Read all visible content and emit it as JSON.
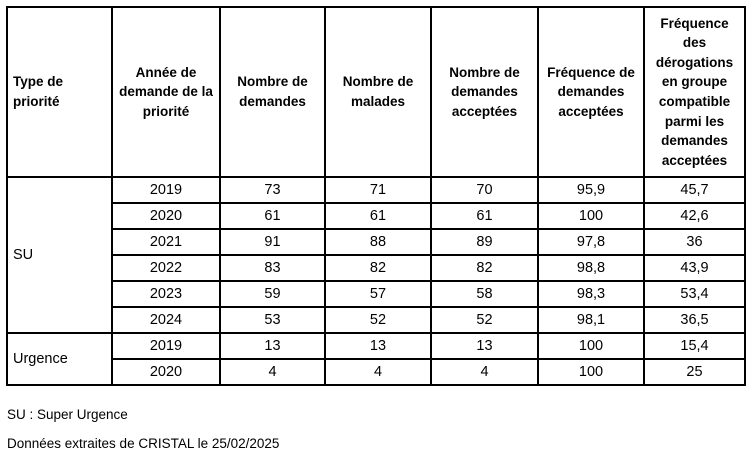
{
  "colors": {
    "background": "#ffffff",
    "border": "#000000",
    "text": "#000000"
  },
  "table": {
    "columns": [
      "Type de priorité",
      "Année de demande de la priorité",
      "Nombre de demandes",
      "Nombre de malades",
      "Nombre de demandes acceptées",
      "Fréquence de demandes acceptées",
      "Fréquence des dérogations en groupe compatible parmi les demandes acceptées"
    ],
    "groups": [
      {
        "type": "SU",
        "rows": [
          {
            "year": "2019",
            "values": [
              "73",
              "71",
              "70",
              "95,9",
              "45,7"
            ]
          },
          {
            "year": "2020",
            "values": [
              "61",
              "61",
              "61",
              "100",
              "42,6"
            ]
          },
          {
            "year": "2021",
            "values": [
              "91",
              "88",
              "89",
              "97,8",
              "36"
            ]
          },
          {
            "year": "2022",
            "values": [
              "83",
              "82",
              "82",
              "98,8",
              "43,9"
            ]
          },
          {
            "year": "2023",
            "values": [
              "59",
              "57",
              "58",
              "98,3",
              "53,4"
            ]
          },
          {
            "year": "2024",
            "values": [
              "53",
              "52",
              "52",
              "98,1",
              "36,5"
            ]
          }
        ]
      },
      {
        "type": "Urgence",
        "rows": [
          {
            "year": "2019",
            "values": [
              "13",
              "13",
              "13",
              "100",
              "15,4"
            ]
          },
          {
            "year": "2020",
            "values": [
              "4",
              "4",
              "4",
              "100",
              "25"
            ]
          }
        ]
      }
    ]
  },
  "footer": {
    "abbreviation_note": "SU : Super Urgence",
    "source_note": "Données extraites de CRISTAL le 25/02/2025"
  }
}
